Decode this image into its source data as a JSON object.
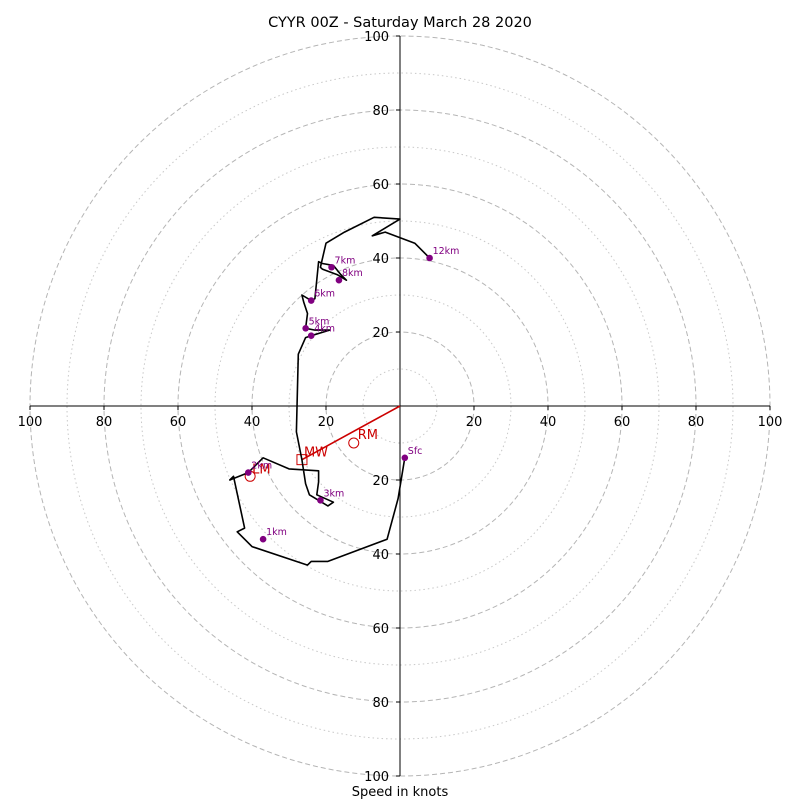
{
  "chart_data": {
    "type": "hodograph",
    "title": "CYYR 00Z - Saturday March 28 2020",
    "xlabel": "Speed in knots",
    "ylabel": "",
    "xlim": [
      -100,
      100
    ],
    "ylim": [
      -100,
      100
    ],
    "ring_major": [
      20,
      40,
      60,
      80,
      100
    ],
    "ring_minor": [
      10,
      30,
      50,
      70,
      90
    ],
    "x_ticks": [
      {
        "value": -100,
        "label": "100"
      },
      {
        "value": -80,
        "label": "80"
      },
      {
        "value": -60,
        "label": "60"
      },
      {
        "value": -40,
        "label": "40"
      },
      {
        "value": -20,
        "label": "20"
      },
      {
        "value": 20,
        "label": "20"
      },
      {
        "value": 40,
        "label": "40"
      },
      {
        "value": 60,
        "label": "60"
      },
      {
        "value": 80,
        "label": "80"
      },
      {
        "value": 100,
        "label": "100"
      }
    ],
    "y_ticks": [
      {
        "value": 100,
        "label": "100"
      },
      {
        "value": 80,
        "label": "80"
      },
      {
        "value": 60,
        "label": "60"
      },
      {
        "value": 40,
        "label": "40"
      },
      {
        "value": 20,
        "label": "20"
      },
      {
        "value": -20,
        "label": "20"
      },
      {
        "value": -40,
        "label": "40"
      },
      {
        "value": -60,
        "label": "60"
      },
      {
        "value": -80,
        "label": "80"
      },
      {
        "value": -100,
        "label": "100"
      }
    ],
    "hodograph": {
      "color": "#000000",
      "points": [
        [
          1.3,
          -14
        ],
        [
          -0.5,
          -25
        ],
        [
          -3.5,
          -36
        ],
        [
          -19.5,
          -42
        ],
        [
          -24,
          -42
        ],
        [
          -25,
          -43
        ],
        [
          -40,
          -38
        ],
        [
          -44,
          -34
        ],
        [
          -42,
          -33
        ],
        [
          -45,
          -19
        ],
        [
          -46,
          -20
        ],
        [
          -41,
          -18
        ],
        [
          -37,
          -14
        ],
        [
          -30,
          -17
        ],
        [
          -22,
          -17.5
        ],
        [
          -22,
          -20.5
        ],
        [
          -22.5,
          -24
        ],
        [
          -18,
          -26
        ],
        [
          -19.5,
          -27
        ],
        [
          -24.5,
          -24
        ],
        [
          -25.5,
          -21
        ],
        [
          -26.5,
          -14.5
        ],
        [
          -28,
          -7
        ],
        [
          -27.5,
          14
        ],
        [
          -25.5,
          18.5
        ],
        [
          -24,
          19
        ],
        [
          -19,
          20.5
        ],
        [
          -23,
          20.5
        ],
        [
          -25.5,
          21
        ],
        [
          -25,
          25
        ],
        [
          -26,
          28
        ],
        [
          -26.5,
          30
        ],
        [
          -24,
          28.5
        ],
        [
          -23,
          29
        ],
        [
          -22,
          39
        ],
        [
          -21,
          38.5
        ],
        [
          -18,
          38
        ],
        [
          -16,
          35.5
        ],
        [
          -14.5,
          34
        ],
        [
          -17,
          35.5
        ],
        [
          -21,
          37
        ],
        [
          -21.5,
          37.5
        ],
        [
          -20,
          44
        ],
        [
          -15,
          47
        ],
        [
          -7,
          51
        ],
        [
          0,
          50.5
        ],
        [
          -7.5,
          46
        ],
        [
          -4,
          47
        ],
        [
          4,
          44
        ],
        [
          8,
          40
        ]
      ]
    },
    "height_markers": [
      {
        "label": "Sfc",
        "x": 1.3,
        "y": -14
      },
      {
        "label": "1km",
        "x": -37,
        "y": -36
      },
      {
        "label": "2km",
        "x": -41,
        "y": -18
      },
      {
        "label": "3km",
        "x": -21.5,
        "y": -25.5
      },
      {
        "label": "4km",
        "x": -24,
        "y": 19
      },
      {
        "label": "5km",
        "x": -25.5,
        "y": 21
      },
      {
        "label": "6km",
        "x": -24,
        "y": 28.5
      },
      {
        "label": "7km",
        "x": -18.5,
        "y": 37.5
      },
      {
        "label": "8km",
        "x": -16.5,
        "y": 34
      },
      {
        "label": "12km",
        "x": 8,
        "y": 40
      }
    ],
    "storm_motion": {
      "color": "#cc0000",
      "mw": {
        "label": "MW",
        "x": -26.5,
        "y": -14.5
      },
      "rm": {
        "label": "RM",
        "x": -12.5,
        "y": -10
      },
      "lm": {
        "label": "LM",
        "x": -40.5,
        "y": -19
      }
    }
  }
}
